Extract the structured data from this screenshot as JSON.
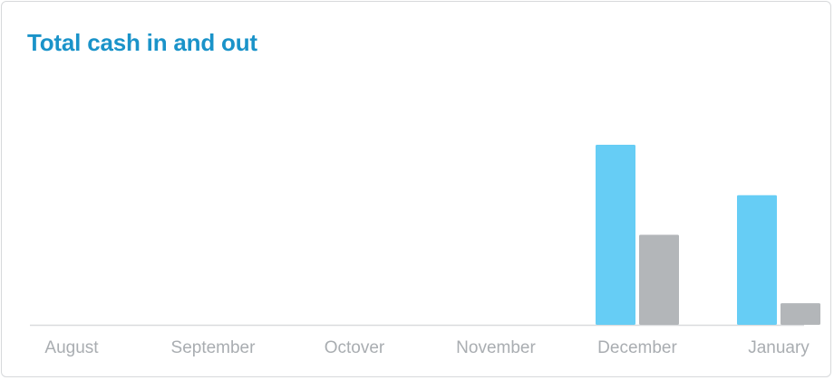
{
  "title": "Total cash in and out",
  "colors": {
    "title": "#1a93c9",
    "cash_in": "#66cdf5",
    "cash_out": "#b3b6b9",
    "baseline": "#d9dbdd",
    "tick_label": "#a9adb1"
  },
  "chart_data": {
    "type": "bar",
    "title": "Total cash in and out",
    "categories": [
      "August",
      "September",
      "Octover",
      "November",
      "December",
      "January"
    ],
    "series": [
      {
        "values": [
          0,
          0,
          0,
          0,
          100,
          72
        ]
      },
      {
        "values": [
          0,
          0,
          0,
          0,
          50,
          12
        ]
      }
    ],
    "xlabel": "",
    "ylabel": "",
    "ylim": [
      0,
      100
    ],
    "grid": false,
    "legend": "none"
  }
}
